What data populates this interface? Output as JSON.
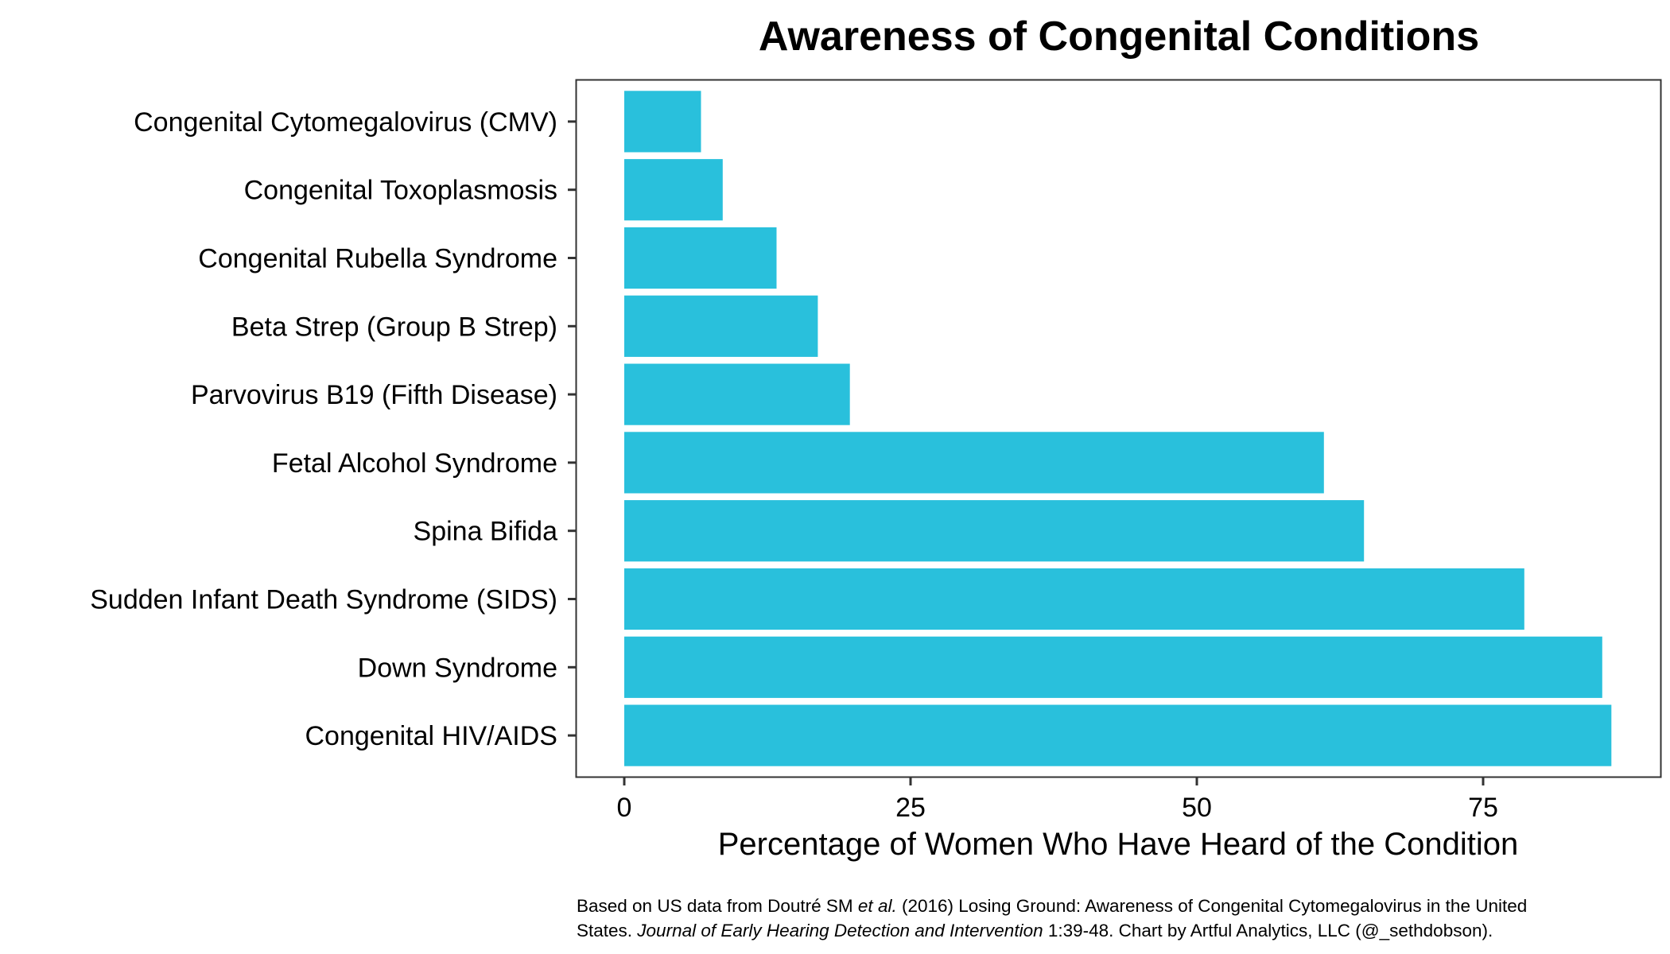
{
  "chart_data": {
    "type": "bar",
    "orientation": "horizontal",
    "title": "Awareness of Congenital Conditions",
    "xlabel": "Percentage of Women Who Have Heard of the Condition",
    "ylabel": "",
    "xlim": [
      0,
      86
    ],
    "x_ticks": [
      0,
      25,
      50,
      75
    ],
    "x_tick_labels": [
      "0",
      "25",
      "50",
      "75"
    ],
    "categories": [
      "Congenital Cytomegalovirus (CMV)",
      "Congenital Toxoplasmosis",
      "Congenital Rubella Syndrome",
      "Beta Strep (Group B Strep)",
      "Parvovirus B19 (Fifth Disease)",
      "Fetal Alcohol Syndrome",
      "Spina Bifida",
      "Sudden Infant Death Syndrome (SIDS)",
      "Down Syndrome",
      "Congenital HIV/AIDS"
    ],
    "values": [
      6.7,
      8.6,
      13.3,
      16.9,
      19.7,
      61.1,
      64.6,
      78.6,
      85.4,
      86.2
    ],
    "bar_color": "#29c0dc",
    "grid": false,
    "legend": "none"
  },
  "caption": {
    "line1_a": "Based on US data from Doutré SM ",
    "line1_b": "et al.",
    "line1_c": " (2016) Losing Ground: Awareness of Congenital Cytomegalovirus in the United",
    "line2_a": "States. ",
    "line2_b": "Journal of Early Hearing Detection and Intervention",
    "line2_c": " 1:39-48. Chart by Artful Analytics, LLC (@_sethdobson)."
  }
}
